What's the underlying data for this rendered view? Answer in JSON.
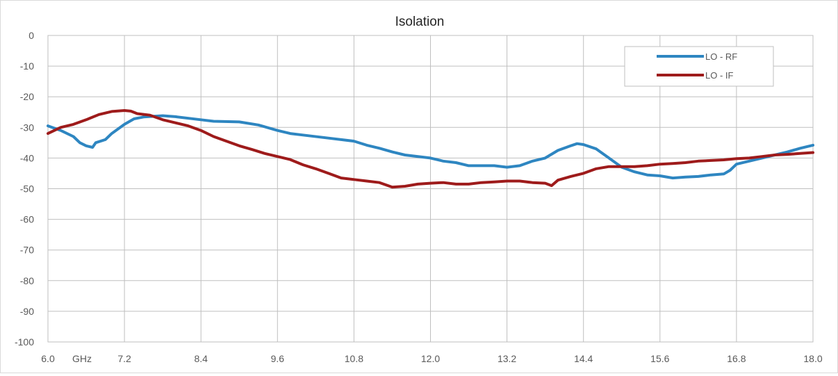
{
  "chart_data": {
    "type": "line",
    "title": "Isolation",
    "xlabel": "",
    "ylabel": "",
    "x_unit_label": "GHz",
    "xlim": [
      6.0,
      18.0
    ],
    "ylim": [
      -100,
      0
    ],
    "x_ticks": [
      "6.0",
      "7.2",
      "8.4",
      "9.6",
      "10.8",
      "12.0",
      "13.2",
      "14.4",
      "15.6",
      "16.8",
      "18.0"
    ],
    "y_ticks": [
      "0",
      "-10",
      "-20",
      "-30",
      "-40",
      "-50",
      "-60",
      "-70",
      "-80",
      "-90",
      "-100"
    ],
    "grid": true,
    "legend_position": "top-right",
    "series": [
      {
        "name": "LO - RF",
        "color": "#2e86c1",
        "points": [
          [
            6.0,
            -29.5
          ],
          [
            6.2,
            -31
          ],
          [
            6.4,
            -33
          ],
          [
            6.5,
            -35
          ],
          [
            6.6,
            -36
          ],
          [
            6.7,
            -36.5
          ],
          [
            6.75,
            -35
          ],
          [
            6.9,
            -34
          ],
          [
            7.0,
            -32
          ],
          [
            7.2,
            -29
          ],
          [
            7.35,
            -27.2
          ],
          [
            7.5,
            -26.6
          ],
          [
            7.8,
            -26.2
          ],
          [
            8.0,
            -26.5
          ],
          [
            8.4,
            -27.5
          ],
          [
            8.6,
            -28
          ],
          [
            9.0,
            -28.2
          ],
          [
            9.3,
            -29.2
          ],
          [
            9.6,
            -31
          ],
          [
            9.8,
            -32
          ],
          [
            10.0,
            -32.5
          ],
          [
            10.4,
            -33.5
          ],
          [
            10.8,
            -34.5
          ],
          [
            11.0,
            -35.8
          ],
          [
            11.2,
            -36.8
          ],
          [
            11.4,
            -38
          ],
          [
            11.6,
            -39
          ],
          [
            12.0,
            -40
          ],
          [
            12.2,
            -41
          ],
          [
            12.4,
            -41.5
          ],
          [
            12.6,
            -42.5
          ],
          [
            13.0,
            -42.5
          ],
          [
            13.2,
            -43
          ],
          [
            13.4,
            -42.5
          ],
          [
            13.6,
            -41
          ],
          [
            13.8,
            -40
          ],
          [
            14.0,
            -37.5
          ],
          [
            14.2,
            -36
          ],
          [
            14.3,
            -35.3
          ],
          [
            14.4,
            -35.6
          ],
          [
            14.6,
            -37
          ],
          [
            14.8,
            -40
          ],
          [
            15.0,
            -43
          ],
          [
            15.2,
            -44.5
          ],
          [
            15.4,
            -45.5
          ],
          [
            15.6,
            -45.8
          ],
          [
            15.8,
            -46.5
          ],
          [
            16.0,
            -46.2
          ],
          [
            16.2,
            -46
          ],
          [
            16.4,
            -45.5
          ],
          [
            16.6,
            -45.2
          ],
          [
            16.7,
            -44
          ],
          [
            16.8,
            -42
          ],
          [
            17.0,
            -41
          ],
          [
            17.2,
            -40
          ],
          [
            17.4,
            -39
          ],
          [
            17.6,
            -38
          ],
          [
            17.8,
            -36.8
          ],
          [
            18.0,
            -35.8
          ]
        ]
      },
      {
        "name": "LO - IF",
        "color": "#9e1b1b",
        "points": [
          [
            6.0,
            -32
          ],
          [
            6.2,
            -30
          ],
          [
            6.4,
            -29
          ],
          [
            6.6,
            -27.5
          ],
          [
            6.8,
            -25.8
          ],
          [
            7.0,
            -24.8
          ],
          [
            7.2,
            -24.5
          ],
          [
            7.3,
            -24.7
          ],
          [
            7.4,
            -25.5
          ],
          [
            7.6,
            -26
          ],
          [
            7.8,
            -27.5
          ],
          [
            8.0,
            -28.5
          ],
          [
            8.2,
            -29.5
          ],
          [
            8.4,
            -31
          ],
          [
            8.6,
            -33
          ],
          [
            8.8,
            -34.5
          ],
          [
            9.0,
            -36
          ],
          [
            9.2,
            -37.2
          ],
          [
            9.4,
            -38.5
          ],
          [
            9.6,
            -39.5
          ],
          [
            9.8,
            -40.5
          ],
          [
            10.0,
            -42.2
          ],
          [
            10.2,
            -43.5
          ],
          [
            10.4,
            -45
          ],
          [
            10.6,
            -46.5
          ],
          [
            10.8,
            -47
          ],
          [
            11.0,
            -47.5
          ],
          [
            11.2,
            -48
          ],
          [
            11.4,
            -49.5
          ],
          [
            11.6,
            -49.2
          ],
          [
            11.8,
            -48.5
          ],
          [
            12.0,
            -48.2
          ],
          [
            12.2,
            -48
          ],
          [
            12.4,
            -48.5
          ],
          [
            12.6,
            -48.5
          ],
          [
            12.8,
            -48
          ],
          [
            13.0,
            -47.8
          ],
          [
            13.2,
            -47.5
          ],
          [
            13.4,
            -47.5
          ],
          [
            13.6,
            -48
          ],
          [
            13.8,
            -48.2
          ],
          [
            13.9,
            -49
          ],
          [
            14.0,
            -47.2
          ],
          [
            14.2,
            -46
          ],
          [
            14.4,
            -45
          ],
          [
            14.6,
            -43.5
          ],
          [
            14.8,
            -42.8
          ],
          [
            15.0,
            -42.8
          ],
          [
            15.2,
            -42.8
          ],
          [
            15.4,
            -42.5
          ],
          [
            15.6,
            -42
          ],
          [
            15.8,
            -41.8
          ],
          [
            16.0,
            -41.5
          ],
          [
            16.2,
            -41
          ],
          [
            16.4,
            -40.8
          ],
          [
            16.6,
            -40.6
          ],
          [
            16.8,
            -40.2
          ],
          [
            17.0,
            -40
          ],
          [
            17.2,
            -39.5
          ],
          [
            17.4,
            -39
          ],
          [
            17.6,
            -38.8
          ],
          [
            17.8,
            -38.5
          ],
          [
            18.0,
            -38.2
          ]
        ]
      }
    ]
  }
}
